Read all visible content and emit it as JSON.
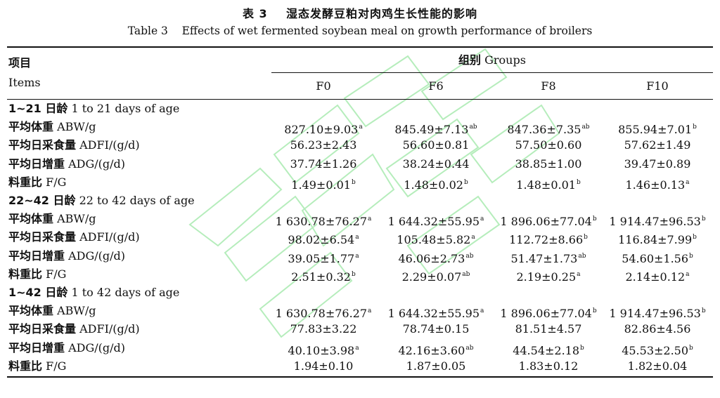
{
  "title": {
    "prefix": "表 3",
    "cn": "湿态发酵豆粕对肉鸡生长性能的影响",
    "en": "Table 3    Effects of wet fermented soybean meal on growth performance of broilers"
  },
  "header": {
    "item_cn": "项目",
    "item_en": "Items",
    "groups_cn": "组别",
    "groups_en": "Groups",
    "columns": [
      "F0",
      "F6",
      "F8",
      "F10"
    ]
  },
  "sections": [
    {
      "cn": "1~21 日龄",
      "en": "1 to 21 days of age",
      "rows": [
        {
          "cn": "平均体重",
          "en": "ABW/g",
          "cells": [
            {
              "v": "827.10±9.03",
              "s": "a"
            },
            {
              "v": "845.49±7.13",
              "s": "ab"
            },
            {
              "v": "847.36±7.35",
              "s": "ab"
            },
            {
              "v": "855.94±7.01",
              "s": "b"
            }
          ]
        },
        {
          "cn": "平均日采食量",
          "en": "ADFI/(g/d)",
          "cells": [
            {
              "v": "56.23±2.43",
              "s": ""
            },
            {
              "v": "56.60±0.81",
              "s": ""
            },
            {
              "v": "57.50±0.60",
              "s": ""
            },
            {
              "v": "57.62±1.49",
              "s": ""
            }
          ]
        },
        {
          "cn": "平均日增重",
          "en": "ADG/(g/d)",
          "cells": [
            {
              "v": "37.74±1.26",
              "s": ""
            },
            {
              "v": "38.24±0.44",
              "s": ""
            },
            {
              "v": "38.85±1.00",
              "s": ""
            },
            {
              "v": "39.47±0.89",
              "s": ""
            }
          ]
        },
        {
          "cn": "料重比",
          "en": "F/G",
          "cells": [
            {
              "v": "1.49±0.01",
              "s": "b"
            },
            {
              "v": "1.48±0.02",
              "s": "b"
            },
            {
              "v": "1.48±0.01",
              "s": "b"
            },
            {
              "v": "1.46±0.13",
              "s": "a"
            }
          ]
        }
      ]
    },
    {
      "cn": "22~42 日龄",
      "en": "22 to 42 days of age",
      "rows": [
        {
          "cn": "平均体重",
          "en": "ABW/g",
          "cells": [
            {
              "v": "1 630.78±76.27",
              "s": "a"
            },
            {
              "v": "1 644.32±55.95",
              "s": "a"
            },
            {
              "v": "1 896.06±77.04",
              "s": "b"
            },
            {
              "v": "1 914.47±96.53",
              "s": "b"
            }
          ]
        },
        {
          "cn": "平均日采食量",
          "en": "ADFI/(g/d)",
          "cells": [
            {
              "v": "98.02±6.54",
              "s": "a"
            },
            {
              "v": "105.48±5.82",
              "s": "a"
            },
            {
              "v": "112.72±8.66",
              "s": "b"
            },
            {
              "v": "116.84±7.99",
              "s": "b"
            }
          ]
        },
        {
          "cn": "平均日增重",
          "en": "ADG/(g/d)",
          "cells": [
            {
              "v": "39.05±1.77",
              "s": "a"
            },
            {
              "v": "46.06±2.73",
              "s": "ab"
            },
            {
              "v": "51.47±1.73",
              "s": "ab"
            },
            {
              "v": "54.60±1.56",
              "s": "b"
            }
          ]
        },
        {
          "cn": "料重比",
          "en": "F/G",
          "cells": [
            {
              "v": "2.51±0.32",
              "s": "b"
            },
            {
              "v": "2.29±0.07",
              "s": "ab"
            },
            {
              "v": "2.19±0.25",
              "s": "a"
            },
            {
              "v": "2.14±0.12",
              "s": "a"
            }
          ]
        }
      ]
    },
    {
      "cn": "1~42 日龄",
      "en": "1 to 42 days of age",
      "rows": [
        {
          "cn": "平均体重",
          "en": "ABW/g",
          "cells": [
            {
              "v": "1 630.78±76.27",
              "s": "a"
            },
            {
              "v": "1 644.32±55.95",
              "s": "a"
            },
            {
              "v": "1 896.06±77.04",
              "s": "b"
            },
            {
              "v": "1 914.47±96.53",
              "s": "b"
            }
          ]
        },
        {
          "cn": "平均日采食量",
          "en": "ADFI/(g/d)",
          "cells": [
            {
              "v": "77.83±3.22",
              "s": ""
            },
            {
              "v": "78.74±0.15",
              "s": ""
            },
            {
              "v": "81.51±4.57",
              "s": ""
            },
            {
              "v": "82.86±4.56",
              "s": ""
            }
          ]
        },
        {
          "cn": "平均日增重",
          "en": "ADG/(g/d)",
          "cells": [
            {
              "v": "40.10±3.98",
              "s": "a"
            },
            {
              "v": "42.16±3.60",
              "s": "ab"
            },
            {
              "v": "44.54±2.18",
              "s": "b"
            },
            {
              "v": "45.53±2.50",
              "s": "b"
            }
          ]
        },
        {
          "cn": "料重比",
          "en": "F/G",
          "cells": [
            {
              "v": "1.94±0.10",
              "s": ""
            },
            {
              "v": "1.87±0.05",
              "s": ""
            },
            {
              "v": "1.83±0.12",
              "s": ""
            },
            {
              "v": "1.82±0.04",
              "s": ""
            }
          ]
        }
      ]
    }
  ]
}
